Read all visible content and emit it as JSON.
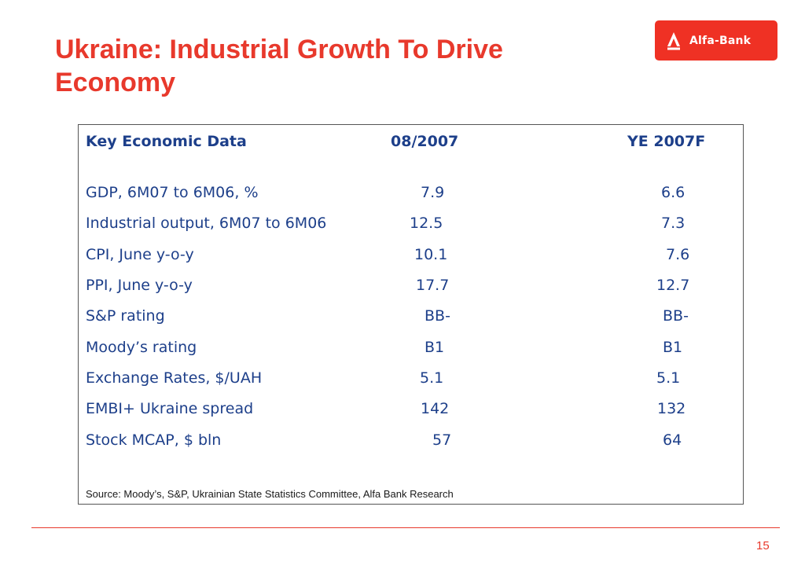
{
  "slide": {
    "title_line1": "Ukraine: Industrial Growth To Drive",
    "title_line2": "Economy",
    "page_number": "15"
  },
  "logo": {
    "text": "Alfa-Bank",
    "bg_color": "#ef3124"
  },
  "table": {
    "headers": [
      "Key Economic Data",
      "08/2007",
      "YE 2007F"
    ],
    "rows": [
      [
        "GDP, 6M07 to 6M06, %",
        "7.9",
        "6.6"
      ],
      [
        "Industrial output, 6M07 to 6M06",
        "12.5",
        "7.3"
      ],
      [
        "CPI, June y-o-y",
        "10.1",
        "7.6"
      ],
      [
        "PPI, June y-o-y",
        "17.7",
        "12.7"
      ],
      [
        "S&P rating",
        "BB-",
        "BB-"
      ],
      [
        "Moody’s rating",
        "B1",
        "B1"
      ],
      [
        "Exchange Rates, $/UAH",
        "5.1",
        "5.1"
      ],
      [
        "EMBI+ Ukraine spread",
        "142",
        "132"
      ],
      [
        "Stock MCAP, $ bln",
        "57",
        "64"
      ]
    ],
    "source": "Source: Moody’s, S&P, Ukrainian State Statistics Committee, Alfa Bank Research"
  },
  "colors": {
    "accent": "#e8392c",
    "table_text": "#1d3f8a"
  }
}
